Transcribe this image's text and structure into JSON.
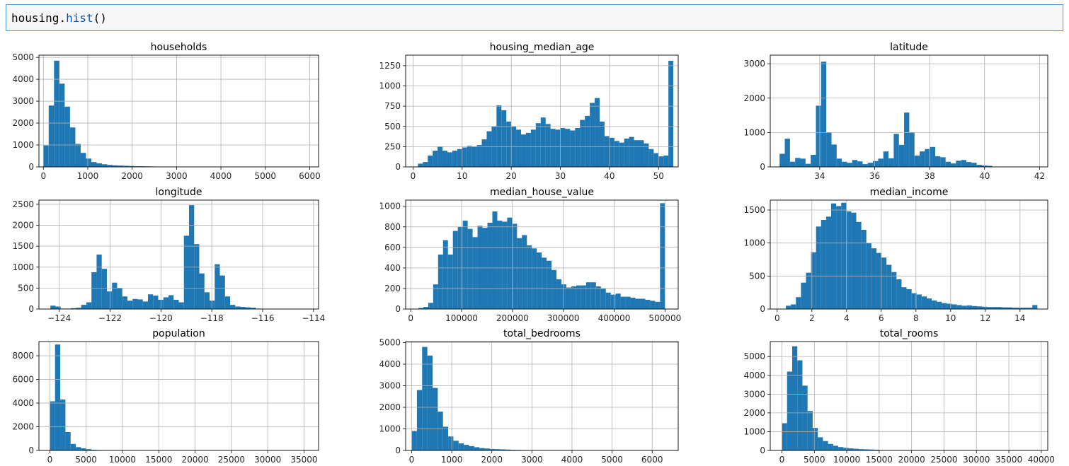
{
  "code_cell": {
    "object": "housing",
    "dot": ".",
    "method": "hist",
    "parens": "()"
  },
  "bar_color": "#1f77b4",
  "chart_data": [
    {
      "type": "bar",
      "title": "households",
      "xlim": [
        -100,
        6200
      ],
      "ylim": [
        0,
        5100
      ],
      "xticks": [
        0,
        1000,
        2000,
        3000,
        4000,
        5000,
        6000
      ],
      "xtick_labels": [
        "0",
        "1000",
        "2000",
        "3000",
        "4000",
        "5000",
        "6000"
      ],
      "yticks": [
        0,
        1000,
        2000,
        3000,
        4000,
        5000
      ],
      "ytick_labels": [
        "0",
        "1000",
        "2000",
        "3000",
        "4000",
        "5000"
      ],
      "bin_start": 0,
      "bin_width": 120,
      "values": [
        980,
        2800,
        4850,
        3800,
        2750,
        1800,
        1050,
        640,
        380,
        220,
        160,
        120,
        90,
        70,
        60,
        50,
        40,
        30,
        30,
        25,
        20,
        15,
        15,
        15
      ]
    },
    {
      "type": "bar",
      "title": "housing_median_age",
      "xlim": [
        -1.5,
        54
      ],
      "ylim": [
        0,
        1380
      ],
      "xticks": [
        0,
        10,
        20,
        30,
        40,
        50
      ],
      "xtick_labels": [
        "0",
        "10",
        "20",
        "30",
        "40",
        "50"
      ],
      "yticks": [
        0,
        250,
        500,
        750,
        1000,
        1250
      ],
      "ytick_labels": [
        "0",
        "250",
        "500",
        "750",
        "1000",
        "1250"
      ],
      "bin_start": 1,
      "bin_width": 1,
      "values": [
        40,
        60,
        140,
        200,
        250,
        200,
        180,
        200,
        220,
        240,
        260,
        250,
        270,
        340,
        440,
        500,
        760,
        700,
        560,
        500,
        460,
        400,
        420,
        460,
        540,
        610,
        530,
        470,
        460,
        480,
        470,
        450,
        480,
        580,
        630,
        790,
        850,
        560,
        380,
        360,
        320,
        300,
        350,
        370,
        330,
        330,
        290,
        220,
        170,
        130,
        140,
        1310
      ]
    },
    {
      "type": "bar",
      "title": "latitude",
      "xlim": [
        32.2,
        42.3
      ],
      "ylim": [
        0,
        3250
      ],
      "xticks": [
        34,
        36,
        38,
        40,
        42
      ],
      "xtick_labels": [
        "34",
        "36",
        "38",
        "40",
        "42"
      ],
      "yticks": [
        0,
        1000,
        2000,
        3000
      ],
      "ytick_labels": [
        "0",
        "1000",
        "2000",
        "3000"
      ],
      "bin_start": 32.54,
      "bin_width": 0.1888,
      "values": [
        380,
        820,
        150,
        260,
        240,
        90,
        350,
        1780,
        3060,
        1000,
        650,
        240,
        150,
        120,
        200,
        160,
        80,
        120,
        170,
        240,
        450,
        250,
        960,
        640,
        1580,
        1000,
        330,
        450,
        520,
        580,
        310,
        280,
        150,
        100,
        180,
        200,
        140,
        120,
        60,
        40,
        30,
        10,
        6,
        5,
        4,
        3,
        3,
        2,
        1,
        1
      ]
    },
    {
      "type": "bar",
      "title": "longitude",
      "xlim": [
        -124.8,
        -113.8
      ],
      "ylim": [
        0,
        2600
      ],
      "xticks": [
        -124,
        -122,
        -120,
        -118,
        -116,
        -114
      ],
      "xtick_labels": [
        "−124",
        "−122",
        "−120",
        "−118",
        "−116",
        "−114"
      ],
      "bin_start": -124.35,
      "bin_width": 0.202,
      "yticks": [
        0,
        500,
        1000,
        1500,
        2000,
        2500
      ],
      "ytick_labels": [
        "0",
        "500",
        "1000",
        "1500",
        "2000",
        "2500"
      ],
      "values": [
        80,
        60,
        10,
        10,
        20,
        30,
        100,
        160,
        880,
        1300,
        960,
        420,
        630,
        500,
        300,
        200,
        240,
        230,
        180,
        350,
        320,
        220,
        280,
        330,
        220,
        160,
        1750,
        2480,
        1550,
        850,
        400,
        200,
        1070,
        800,
        300,
        100,
        60,
        50,
        40,
        30,
        10,
        5,
        5,
        3,
        2,
        2,
        2,
        2,
        1,
        1
      ]
    },
    {
      "type": "bar",
      "title": "median_house_value",
      "xlim": [
        -10000,
        526000
      ],
      "ylim": [
        0,
        1060
      ],
      "xticks": [
        0,
        100000,
        200000,
        300000,
        400000,
        500000
      ],
      "xtick_labels": [
        "0",
        "100000",
        "200000",
        "300000",
        "400000",
        "500000"
      ],
      "yticks": [
        0,
        200,
        400,
        600,
        800,
        1000
      ],
      "ytick_labels": [
        "0",
        "200",
        "400",
        "600",
        "800",
        "1000"
      ],
      "bin_start": 14999,
      "bin_width": 9700,
      "values": [
        10,
        20,
        60,
        240,
        530,
        670,
        530,
        760,
        800,
        860,
        780,
        700,
        810,
        790,
        840,
        950,
        860,
        850,
        890,
        830,
        690,
        720,
        620,
        590,
        550,
        500,
        470,
        380,
        290,
        240,
        210,
        220,
        230,
        230,
        260,
        260,
        220,
        200,
        160,
        140,
        150,
        120,
        120,
        110,
        100,
        100,
        90,
        80,
        70,
        1030
      ]
    },
    {
      "type": "bar",
      "title": "median_income",
      "xlim": [
        -0.4,
        15.6
      ],
      "ylim": [
        0,
        1650
      ],
      "xticks": [
        0,
        2,
        4,
        6,
        8,
        10,
        12,
        14
      ],
      "xtick_labels": [
        "0",
        "2",
        "4",
        "6",
        "8",
        "10",
        "12",
        "14"
      ],
      "yticks": [
        0,
        500,
        1000,
        1500
      ],
      "ytick_labels": [
        "0",
        "500",
        "1000",
        "1500"
      ],
      "bin_start": 0.5,
      "bin_width": 0.29,
      "values": [
        50,
        70,
        180,
        400,
        550,
        860,
        1250,
        1350,
        1400,
        1600,
        1560,
        1610,
        1480,
        1460,
        1320,
        1200,
        1000,
        920,
        850,
        780,
        670,
        560,
        450,
        330,
        300,
        240,
        220,
        190,
        160,
        130,
        110,
        90,
        80,
        70,
        60,
        50,
        55,
        45,
        40,
        35,
        30,
        30,
        30,
        25,
        25,
        20,
        20,
        20,
        20,
        60
      ]
    },
    {
      "type": "bar",
      "title": "population",
      "xlim": [
        -1500,
        37000
      ],
      "ylim": [
        0,
        9200
      ],
      "xticks": [
        0,
        5000,
        10000,
        15000,
        20000,
        25000,
        30000,
        35000
      ],
      "xtick_labels": [
        "0",
        "5000",
        "10000",
        "15000",
        "20000",
        "25000",
        "30000",
        "35000"
      ],
      "yticks": [
        0,
        2000,
        4000,
        6000,
        8000
      ],
      "ytick_labels": [
        "0",
        "2000",
        "4000",
        "6000",
        "8000"
      ],
      "bin_start": 0,
      "bin_width": 715,
      "values": [
        4150,
        8950,
        4300,
        1550,
        550,
        280,
        180,
        110,
        60,
        40,
        30,
        20,
        20,
        15,
        10,
        10,
        8,
        8,
        5,
        5,
        4,
        3,
        3,
        3,
        2,
        2,
        2,
        2,
        2,
        1,
        1,
        1,
        1,
        1,
        1,
        1,
        1,
        1,
        1,
        1,
        1,
        1,
        1,
        1,
        1,
        1,
        1,
        1,
        1,
        1
      ]
    },
    {
      "type": "bar",
      "title": "total_bedrooms",
      "xlim": [
        -150,
        6650
      ],
      "ylim": [
        0,
        5050
      ],
      "xticks": [
        0,
        1000,
        2000,
        3000,
        4000,
        5000,
        6000
      ],
      "xtick_labels": [
        "0",
        "1000",
        "2000",
        "3000",
        "4000",
        "5000",
        "6000"
      ],
      "yticks": [
        0,
        1000,
        2000,
        3000,
        4000,
        5000
      ],
      "ytick_labels": [
        "0",
        "1000",
        "2000",
        "3000",
        "4000",
        "5000"
      ],
      "bin_start": 1,
      "bin_width": 130,
      "values": [
        900,
        2800,
        4800,
        4400,
        2900,
        1800,
        1100,
        650,
        450,
        330,
        260,
        200,
        150,
        110,
        90,
        70,
        60,
        50,
        40,
        30,
        25,
        20,
        15,
        5,
        3,
        3,
        3,
        2,
        2,
        2,
        2,
        2,
        1,
        1,
        1,
        1,
        1,
        1,
        1,
        1,
        1,
        1,
        1,
        1,
        1,
        1,
        1,
        1,
        1,
        1
      ]
    },
    {
      "type": "bar",
      "title": "total_rooms",
      "xlim": [
        -1800,
        41000
      ],
      "ylim": [
        0,
        5800
      ],
      "xticks": [
        0,
        5000,
        10000,
        15000,
        20000,
        25000,
        30000,
        35000,
        40000
      ],
      "xtick_labels": [
        "0",
        "5000",
        "10000",
        "15000",
        "20000",
        "25000",
        "30000",
        "35000",
        "40000"
      ],
      "yticks": [
        0,
        1000,
        2000,
        3000,
        4000,
        5000
      ],
      "ytick_labels": [
        "0",
        "1000",
        "2000",
        "3000",
        "4000",
        "5000"
      ],
      "bin_start": 2,
      "bin_width": 790,
      "values": [
        1450,
        4200,
        5550,
        4800,
        3450,
        2100,
        1200,
        700,
        500,
        350,
        250,
        180,
        140,
        110,
        90,
        70,
        60,
        50,
        40,
        20,
        10,
        5,
        4,
        3,
        3,
        2,
        2,
        2,
        2,
        2,
        1,
        1,
        1,
        1,
        1,
        1,
        1,
        1,
        1,
        1,
        1,
        1,
        1,
        1,
        1,
        1,
        1,
        1,
        1,
        1
      ]
    }
  ]
}
